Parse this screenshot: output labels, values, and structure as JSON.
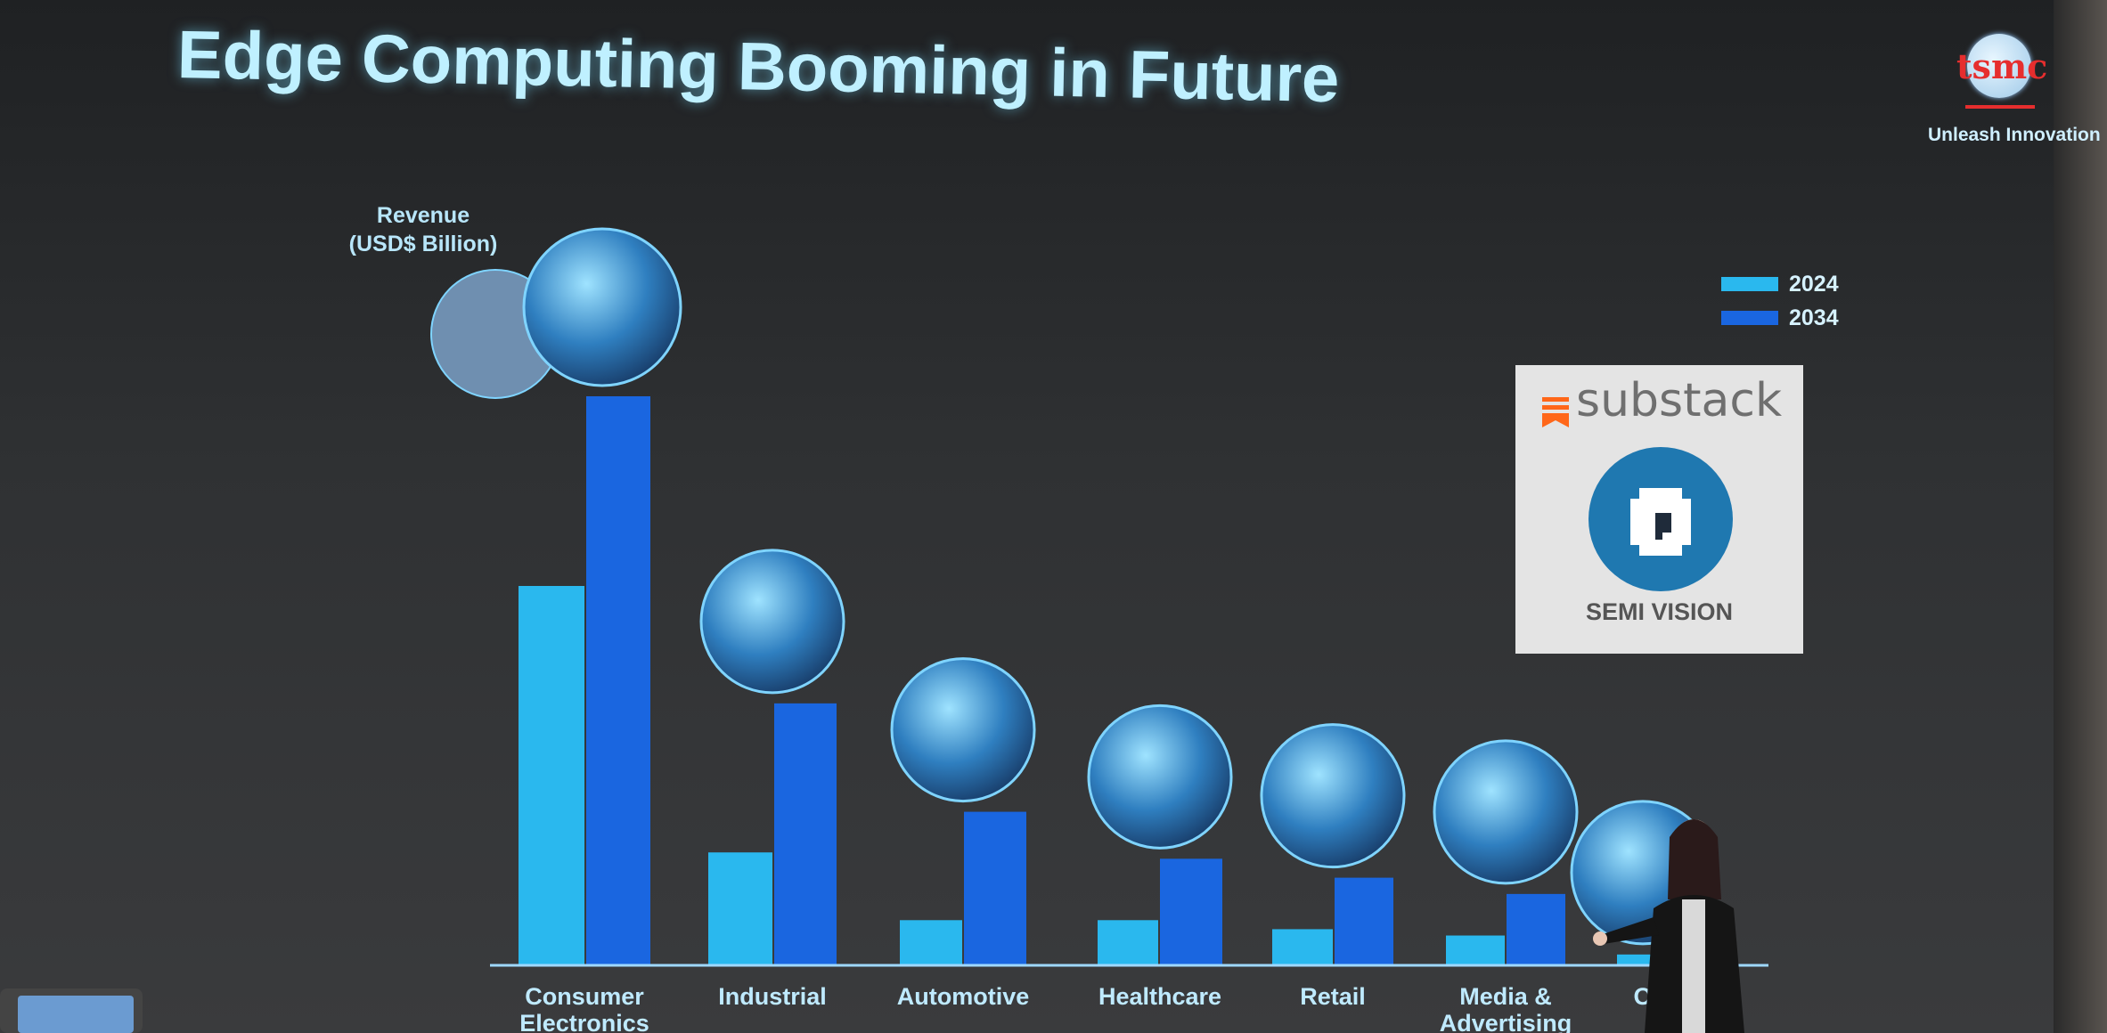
{
  "slide": {
    "title": "Edge Computing Booming in Future",
    "logo_text": "tsmc",
    "tagline": "Unleash Innovation",
    "brand_red": "#e62e2e"
  },
  "chart_data": {
    "type": "bar",
    "title": "Edge Computing Booming in Future",
    "ylabel": "Revenue\n(USD$ Billion)",
    "xlabel": "",
    "categories": [
      "Consumer Electronics",
      "Industrial",
      "Automotive",
      "Healthcare",
      "Retail",
      "Media & Advertising",
      "O..."
    ],
    "category_label_lines": [
      [
        "Consumer",
        "Electronics"
      ],
      [
        "Industrial"
      ],
      [
        "Automotive"
      ],
      [
        "Healthcare"
      ],
      [
        "Retail"
      ],
      [
        "Media &",
        "Advertising"
      ],
      [
        "O"
      ]
    ],
    "series": [
      {
        "name": "2024",
        "color": "#2ab8ee",
        "values": [
          42,
          12.5,
          5,
          5,
          4,
          3.3,
          1.2
        ]
      },
      {
        "name": "2034",
        "color": "#1a66e0",
        "values": [
          63,
          29,
          17,
          11.8,
          9.7,
          7.9,
          0
        ]
      }
    ],
    "ylim": [
      0,
      70
    ],
    "grid": false,
    "legend_position": "top-right",
    "axis_color": "#9fd8ff"
  },
  "watermark": {
    "brand": "substack",
    "name": "SEMI VISION",
    "orange": "#ff6719",
    "blue": "#1f78b0"
  }
}
